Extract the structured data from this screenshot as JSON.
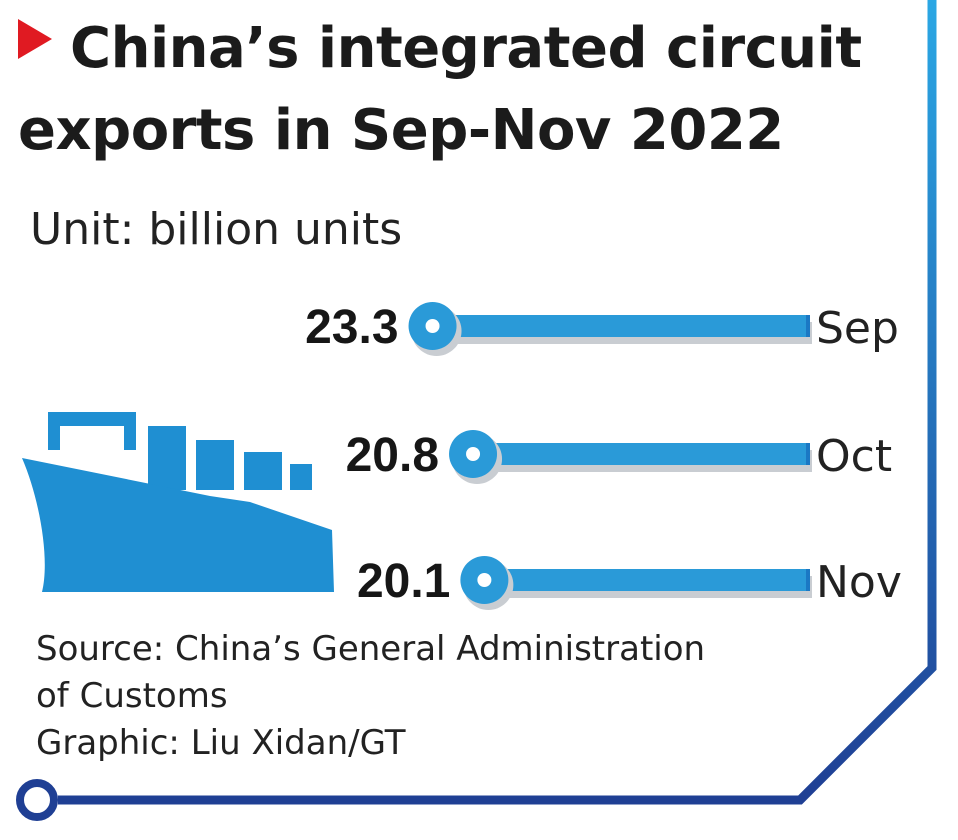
{
  "title_lines": [
    "China’s integrated circuit",
    "exports in Sep-Nov 2022"
  ],
  "unit_text": "Unit: billion units",
  "credits": {
    "source_line1": "Source: China’s General Administration",
    "source_line2": "of Customs",
    "graphic": "Graphic: Liu Xidan/GT"
  },
  "colors": {
    "accent": "#e01a22",
    "bar": "#2a9ad8",
    "bar_dark": "#1b78c4",
    "frame_top": "#2aa7e4",
    "frame_bottom": "#1f3f94",
    "ship": "#1f8fd2"
  },
  "icons": {
    "title_marker": "red-triangle-icon",
    "ship": "cargo-ship-icon"
  },
  "chart_data": {
    "type": "bar",
    "orientation": "horizontal",
    "categories": [
      "Sep",
      "Oct",
      "Nov"
    ],
    "values": [
      23.3,
      20.8,
      20.1
    ],
    "data_labels": [
      "23.3",
      "20.8",
      "20.1"
    ],
    "title": "China’s integrated circuit exports in Sep-Nov 2022",
    "unit": "Unit: billion units",
    "xlabel": "",
    "ylabel": "",
    "grid": false,
    "legend": "none"
  }
}
